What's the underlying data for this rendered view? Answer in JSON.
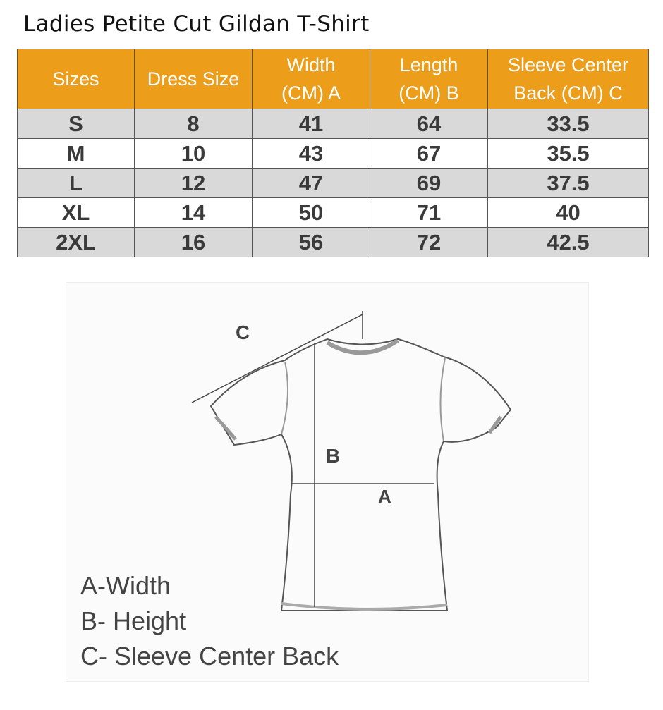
{
  "title": "Ladies Petite Cut Gildan T-Shirt",
  "table": {
    "headers": [
      [
        "Sizes",
        ""
      ],
      [
        "Dress Size",
        ""
      ],
      [
        "Width",
        "(CM) A"
      ],
      [
        "Length",
        "(CM) B"
      ],
      [
        "Sleeve Center",
        "Back (CM) C"
      ]
    ],
    "rows": [
      [
        "S",
        "8",
        "41",
        "64",
        "33.5"
      ],
      [
        "M",
        "10",
        "43",
        "67",
        "35.5"
      ],
      [
        "L",
        "12",
        "47",
        "69",
        "37.5"
      ],
      [
        "XL",
        "14",
        "50",
        "71",
        "40"
      ],
      [
        "2XL",
        "16",
        "56",
        "72",
        "42.5"
      ]
    ]
  },
  "colors": {
    "header": "#ec9e1a",
    "stripe": "#d9d9d9"
  },
  "diagram": {
    "label_a": "A",
    "label_b": "B",
    "label_c": "C",
    "legend": [
      "A-Width",
      "B- Height",
      "C- Sleeve Center Back"
    ]
  }
}
